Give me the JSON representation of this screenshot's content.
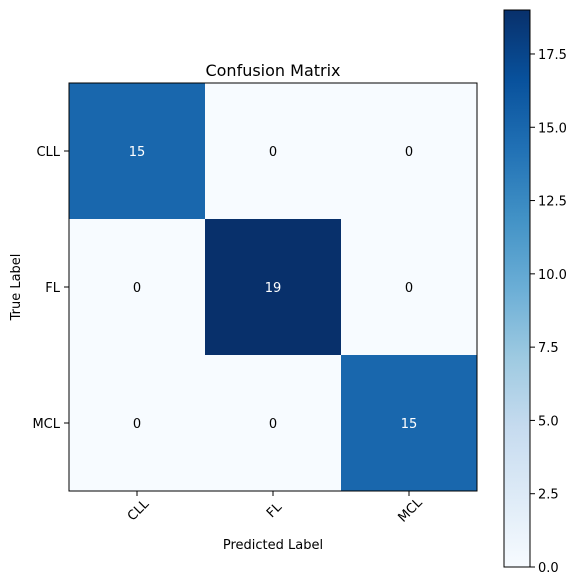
{
  "chart_data": {
    "type": "heatmap",
    "title": "Confusion Matrix",
    "xlabel": "Predicted Label",
    "ylabel": "True Label",
    "x_categories": [
      "CLL",
      "FL",
      "MCL"
    ],
    "y_categories": [
      "CLL",
      "FL",
      "MCL"
    ],
    "values": [
      [
        15,
        0,
        0
      ],
      [
        0,
        19,
        0
      ],
      [
        0,
        0,
        15
      ]
    ],
    "colormap": "Blues",
    "colorbar": {
      "range": [
        0,
        19
      ],
      "ticks": [
        0,
        2.5,
        5,
        7.5,
        10,
        12.5,
        15,
        17.5
      ],
      "tick_labels": [
        "0.0",
        "2.5",
        "5.0",
        "7.5",
        "10.0",
        "12.5",
        "15.0",
        "17.5"
      ]
    },
    "grid": false
  }
}
